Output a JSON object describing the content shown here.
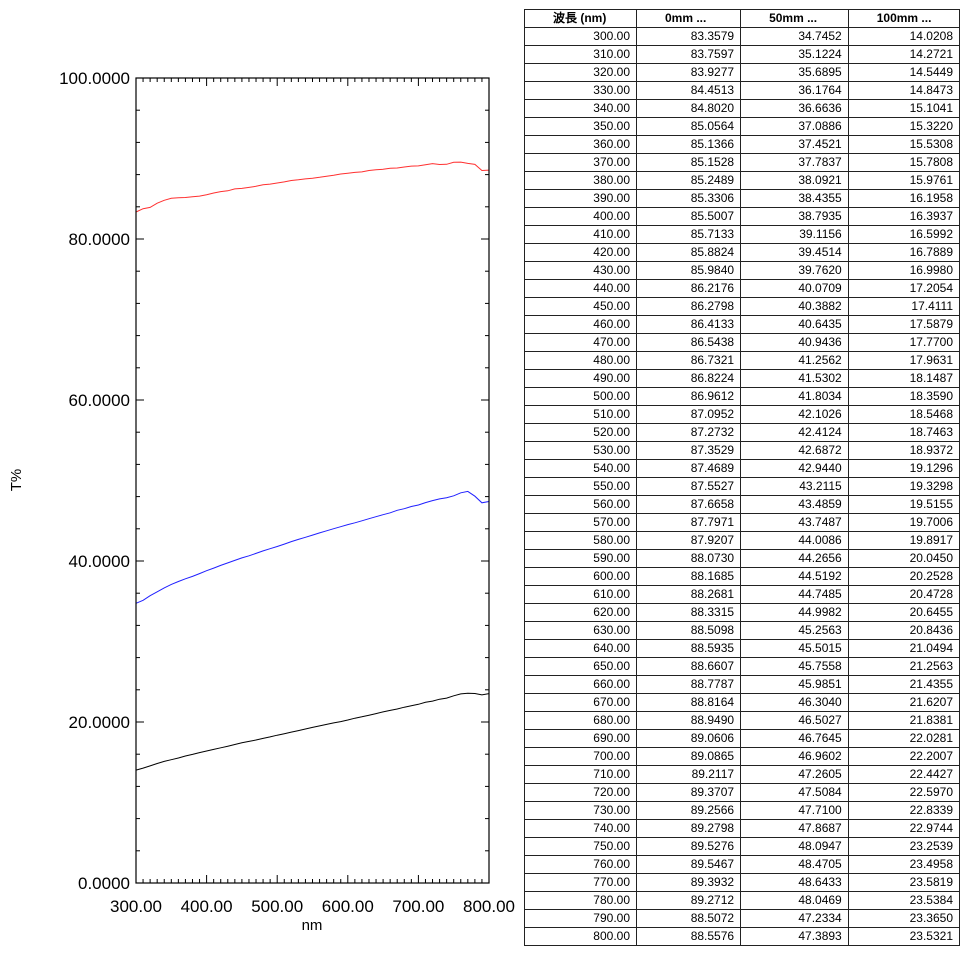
{
  "chart_data": {
    "type": "line",
    "xlabel": "nm",
    "ylabel": "T%",
    "xlim": [
      300,
      800
    ],
    "ylim": [
      0,
      100
    ],
    "x_ticks": [
      "300.00",
      "400.00",
      "500.00",
      "600.00",
      "700.00",
      "800.00"
    ],
    "y_ticks": [
      "0.0000",
      "20.0000",
      "40.0000",
      "60.0000",
      "80.0000",
      "100.0000"
    ],
    "grid": false,
    "x": [
      300,
      310,
      320,
      330,
      340,
      350,
      360,
      370,
      380,
      390,
      400,
      410,
      420,
      430,
      440,
      450,
      460,
      470,
      480,
      490,
      500,
      510,
      520,
      530,
      540,
      550,
      560,
      570,
      580,
      590,
      600,
      610,
      620,
      630,
      640,
      650,
      660,
      670,
      680,
      690,
      700,
      710,
      720,
      730,
      740,
      750,
      760,
      770,
      780,
      790,
      800
    ],
    "series": [
      {
        "name": "0mm ...",
        "color": "#ff3030",
        "values": [
          83.3579,
          83.7597,
          83.9277,
          84.4513,
          84.802,
          85.0564,
          85.1366,
          85.1528,
          85.2489,
          85.3306,
          85.5007,
          85.7133,
          85.8824,
          85.984,
          86.2176,
          86.2798,
          86.4133,
          86.5438,
          86.7321,
          86.8224,
          86.9612,
          87.0952,
          87.2732,
          87.3529,
          87.4689,
          87.5527,
          87.6658,
          87.7971,
          87.9207,
          88.073,
          88.1685,
          88.2681,
          88.3315,
          88.5098,
          88.5935,
          88.6607,
          88.7787,
          88.8164,
          88.949,
          89.0606,
          89.0865,
          89.2117,
          89.3707,
          89.2566,
          89.2798,
          89.5276,
          89.5467,
          89.3932,
          89.2712,
          88.5072,
          88.5576
        ]
      },
      {
        "name": "50mm ...",
        "color": "#2020ff",
        "values": [
          34.7452,
          35.1224,
          35.6895,
          36.1764,
          36.6636,
          37.0886,
          37.4521,
          37.7837,
          38.0921,
          38.4355,
          38.7935,
          39.1156,
          39.4514,
          39.762,
          40.0709,
          40.3882,
          40.6435,
          40.9436,
          41.2562,
          41.5302,
          41.8034,
          42.1026,
          42.4124,
          42.6872,
          42.944,
          43.2115,
          43.4859,
          43.7487,
          44.0086,
          44.2656,
          44.5192,
          44.7485,
          44.9982,
          45.2563,
          45.5015,
          45.7558,
          45.9851,
          46.304,
          46.5027,
          46.7645,
          46.9602,
          47.2605,
          47.5084,
          47.71,
          47.8687,
          48.0947,
          48.4705,
          48.6433,
          48.0469,
          47.2334,
          47.3893
        ]
      },
      {
        "name": "100mm ...",
        "color": "#000000",
        "values": [
          14.0208,
          14.2721,
          14.5449,
          14.8473,
          15.1041,
          15.322,
          15.5308,
          15.7808,
          15.9761,
          16.1958,
          16.3937,
          16.5992,
          16.7889,
          16.998,
          17.2054,
          17.4111,
          17.5879,
          17.77,
          17.9631,
          18.1487,
          18.359,
          18.5468,
          18.7463,
          18.9372,
          19.1296,
          19.3298,
          19.5155,
          19.7006,
          19.8917,
          20.045,
          20.2528,
          20.4728,
          20.6455,
          20.8436,
          21.0494,
          21.2563,
          21.4355,
          21.6207,
          21.8381,
          22.0281,
          22.2007,
          22.4427,
          22.597,
          22.8339,
          22.9744,
          23.2539,
          23.4958,
          23.5819,
          23.5384,
          23.365,
          23.5321
        ]
      }
    ]
  },
  "table": {
    "headers": [
      "波長 (nm)",
      "0mm ...",
      "50mm ...",
      "100mm ..."
    ],
    "wavelengths": [
      "300.00",
      "310.00",
      "320.00",
      "330.00",
      "340.00",
      "350.00",
      "360.00",
      "370.00",
      "380.00",
      "390.00",
      "400.00",
      "410.00",
      "420.00",
      "430.00",
      "440.00",
      "450.00",
      "460.00",
      "470.00",
      "480.00",
      "490.00",
      "500.00",
      "510.00",
      "520.00",
      "530.00",
      "540.00",
      "550.00",
      "560.00",
      "570.00",
      "580.00",
      "590.00",
      "600.00",
      "610.00",
      "620.00",
      "630.00",
      "640.00",
      "650.00",
      "660.00",
      "670.00",
      "680.00",
      "690.00",
      "700.00",
      "710.00",
      "720.00",
      "730.00",
      "740.00",
      "750.00",
      "760.00",
      "770.00",
      "780.00",
      "790.00",
      "800.00"
    ],
    "col_0mm": [
      "83.3579",
      "83.7597",
      "83.9277",
      "84.4513",
      "84.8020",
      "85.0564",
      "85.1366",
      "85.1528",
      "85.2489",
      "85.3306",
      "85.5007",
      "85.7133",
      "85.8824",
      "85.9840",
      "86.2176",
      "86.2798",
      "86.4133",
      "86.5438",
      "86.7321",
      "86.8224",
      "86.9612",
      "87.0952",
      "87.2732",
      "87.3529",
      "87.4689",
      "87.5527",
      "87.6658",
      "87.7971",
      "87.9207",
      "88.0730",
      "88.1685",
      "88.2681",
      "88.3315",
      "88.5098",
      "88.5935",
      "88.6607",
      "88.7787",
      "88.8164",
      "88.9490",
      "89.0606",
      "89.0865",
      "89.2117",
      "89.3707",
      "89.2566",
      "89.2798",
      "89.5276",
      "89.5467",
      "89.3932",
      "89.2712",
      "88.5072",
      "88.5576"
    ],
    "col_50mm": [
      "34.7452",
      "35.1224",
      "35.6895",
      "36.1764",
      "36.6636",
      "37.0886",
      "37.4521",
      "37.7837",
      "38.0921",
      "38.4355",
      "38.7935",
      "39.1156",
      "39.4514",
      "39.7620",
      "40.0709",
      "40.3882",
      "40.6435",
      "40.9436",
      "41.2562",
      "41.5302",
      "41.8034",
      "42.1026",
      "42.4124",
      "42.6872",
      "42.9440",
      "43.2115",
      "43.4859",
      "43.7487",
      "44.0086",
      "44.2656",
      "44.5192",
      "44.7485",
      "44.9982",
      "45.2563",
      "45.5015",
      "45.7558",
      "45.9851",
      "46.3040",
      "46.5027",
      "46.7645",
      "46.9602",
      "47.2605",
      "47.5084",
      "47.7100",
      "47.8687",
      "48.0947",
      "48.4705",
      "48.6433",
      "48.0469",
      "47.2334",
      "47.3893"
    ],
    "col_100mm": [
      "14.0208",
      "14.2721",
      "14.5449",
      "14.8473",
      "15.1041",
      "15.3220",
      "15.5308",
      "15.7808",
      "15.9761",
      "16.1958",
      "16.3937",
      "16.5992",
      "16.7889",
      "16.9980",
      "17.2054",
      "17.4111",
      "17.5879",
      "17.7700",
      "17.9631",
      "18.1487",
      "18.3590",
      "18.5468",
      "18.7463",
      "18.9372",
      "19.1296",
      "19.3298",
      "19.5155",
      "19.7006",
      "19.8917",
      "20.0450",
      "20.2528",
      "20.4728",
      "20.6455",
      "20.8436",
      "21.0494",
      "21.2563",
      "21.4355",
      "21.6207",
      "21.8381",
      "22.0281",
      "22.2007",
      "22.4427",
      "22.5970",
      "22.8339",
      "22.9744",
      "23.2539",
      "23.4958",
      "23.5819",
      "23.5384",
      "23.3650",
      "23.5321"
    ]
  }
}
